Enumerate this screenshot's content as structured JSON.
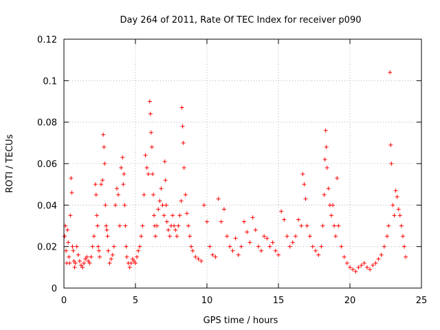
{
  "chart_data": {
    "type": "scatter",
    "title": "Day 264 of 2011, Rate Of TEC Index for receiver p090",
    "xlabel": "GPS time / hours",
    "ylabel": "ROTI / TECUs",
    "xlim": [
      0,
      25
    ],
    "ylim": [
      0,
      0.12
    ],
    "x_ticks": [
      0,
      5,
      10,
      15,
      20,
      25
    ],
    "x_tick_labels": [
      "0",
      "5",
      "10",
      "15",
      "20",
      "25"
    ],
    "y_ticks": [
      0,
      0.02,
      0.04,
      0.06,
      0.08,
      0.1,
      0.12
    ],
    "y_tick_labels": [
      "0",
      "0.02",
      "0.04",
      "0.06",
      "0.08",
      "0.1",
      "0.12"
    ],
    "grid": true,
    "marker": "+",
    "color": "#ff0000",
    "series": [
      {
        "x": [
          0.05,
          0.1,
          0.15,
          0.2,
          0.25,
          0.3,
          0.35,
          0.4,
          0.45,
          0.5,
          0.55,
          0.6,
          0.65,
          0.7,
          0.75,
          0.8,
          0.9,
          1.0,
          1.1,
          1.2,
          1.3,
          1.4,
          1.5,
          1.6,
          1.7,
          1.8,
          1.9,
          2.0,
          2.1,
          2.2,
          2.25,
          2.3,
          2.35,
          2.4,
          2.45,
          2.5,
          2.6,
          2.7,
          2.75,
          2.8,
          2.85,
          2.9,
          2.95,
          3.0,
          3.05,
          3.1,
          3.2,
          3.3,
          3.4,
          3.5,
          3.6,
          3.7,
          3.8,
          3.9,
          4.0,
          4.1,
          4.15,
          4.2,
          4.25,
          4.3,
          4.35,
          4.4,
          4.5,
          4.6,
          4.7,
          4.8,
          4.9,
          5.0,
          5.1,
          5.2,
          5.3,
          5.4,
          5.5,
          5.6,
          5.7,
          5.8,
          5.9,
          6.0,
          6.05,
          6.1,
          6.15,
          6.2,
          6.25,
          6.3,
          6.35,
          6.4,
          6.5,
          6.6,
          6.7,
          6.8,
          6.9,
          7.0,
          7.05,
          7.1,
          7.15,
          7.2,
          7.3,
          7.4,
          7.5,
          7.6,
          7.7,
          7.8,
          7.9,
          8.0,
          8.1,
          8.2,
          8.25,
          8.3,
          8.35,
          8.4,
          8.5,
          8.6,
          8.7,
          8.8,
          8.9,
          9.0,
          9.2,
          9.4,
          9.6,
          9.8,
          10.0,
          10.2,
          10.4,
          10.6,
          10.8,
          11.0,
          11.2,
          11.4,
          11.6,
          11.8,
          12.0,
          12.2,
          12.4,
          12.6,
          12.8,
          13.0,
          13.2,
          13.4,
          13.6,
          13.8,
          14.0,
          14.2,
          14.4,
          14.6,
          14.8,
          15.0,
          15.2,
          15.4,
          15.6,
          15.8,
          16.0,
          16.2,
          16.4,
          16.6,
          16.7,
          16.8,
          16.9,
          17.0,
          17.2,
          17.4,
          17.6,
          17.8,
          18.0,
          18.1,
          18.2,
          18.25,
          18.3,
          18.35,
          18.4,
          18.5,
          18.6,
          18.7,
          18.8,
          18.9,
          19.0,
          19.1,
          19.2,
          19.4,
          19.6,
          19.8,
          20.0,
          20.2,
          20.4,
          20.6,
          20.8,
          21.0,
          21.2,
          21.4,
          21.6,
          21.8,
          22.0,
          22.2,
          22.4,
          22.6,
          22.7,
          22.8,
          22.85,
          22.9,
          23.0,
          23.1,
          23.2,
          23.3,
          23.4,
          23.5,
          23.6,
          23.7,
          23.8,
          23.9
        ],
        "y": [
          0.025,
          0.03,
          0.018,
          0.012,
          0.028,
          0.022,
          0.015,
          0.012,
          0.035,
          0.053,
          0.046,
          0.02,
          0.018,
          0.013,
          0.01,
          0.012,
          0.02,
          0.016,
          0.013,
          0.011,
          0.01,
          0.012,
          0.014,
          0.015,
          0.013,
          0.012,
          0.015,
          0.02,
          0.025,
          0.05,
          0.045,
          0.035,
          0.03,
          0.02,
          0.018,
          0.015,
          0.05,
          0.052,
          0.074,
          0.068,
          0.06,
          0.04,
          0.03,
          0.028,
          0.025,
          0.018,
          0.012,
          0.014,
          0.016,
          0.02,
          0.04,
          0.048,
          0.045,
          0.03,
          0.058,
          0.063,
          0.05,
          0.055,
          0.04,
          0.03,
          0.02,
          0.015,
          0.012,
          0.01,
          0.012,
          0.014,
          0.013,
          0.012,
          0.015,
          0.018,
          0.02,
          0.025,
          0.03,
          0.045,
          0.064,
          0.058,
          0.055,
          0.09,
          0.084,
          0.075,
          0.068,
          0.055,
          0.045,
          0.035,
          0.03,
          0.025,
          0.03,
          0.038,
          0.042,
          0.048,
          0.04,
          0.035,
          0.061,
          0.052,
          0.04,
          0.032,
          0.028,
          0.025,
          0.03,
          0.035,
          0.03,
          0.028,
          0.025,
          0.03,
          0.035,
          0.042,
          0.087,
          0.078,
          0.07,
          0.058,
          0.045,
          0.036,
          0.03,
          0.025,
          0.02,
          0.018,
          0.015,
          0.014,
          0.013,
          0.04,
          0.032,
          0.02,
          0.016,
          0.015,
          0.043,
          0.032,
          0.038,
          0.025,
          0.02,
          0.018,
          0.024,
          0.016,
          0.02,
          0.032,
          0.027,
          0.022,
          0.034,
          0.028,
          0.02,
          0.018,
          0.025,
          0.024,
          0.02,
          0.022,
          0.018,
          0.016,
          0.037,
          0.033,
          0.025,
          0.02,
          0.022,
          0.025,
          0.033,
          0.03,
          0.055,
          0.05,
          0.043,
          0.03,
          0.025,
          0.02,
          0.018,
          0.016,
          0.02,
          0.03,
          0.045,
          0.062,
          0.076,
          0.068,
          0.058,
          0.048,
          0.04,
          0.035,
          0.04,
          0.03,
          0.025,
          0.053,
          0.03,
          0.02,
          0.015,
          0.012,
          0.01,
          0.009,
          0.008,
          0.01,
          0.011,
          0.012,
          0.01,
          0.009,
          0.011,
          0.012,
          0.014,
          0.016,
          0.02,
          0.025,
          0.03,
          0.104,
          0.069,
          0.06,
          0.04,
          0.035,
          0.047,
          0.044,
          0.038,
          0.035,
          0.03,
          0.025,
          0.02,
          0.015
        ]
      }
    ]
  }
}
